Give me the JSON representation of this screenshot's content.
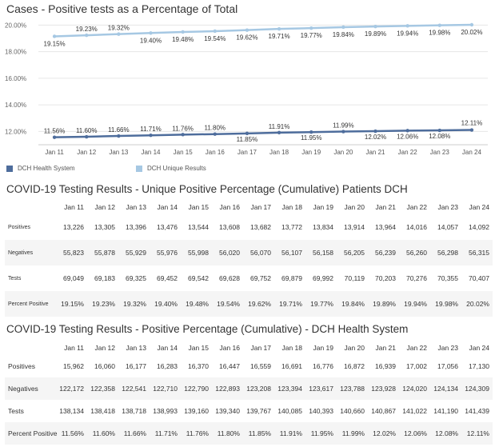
{
  "chart_data": {
    "type": "line",
    "title": "Cases - Positive tests as a Percentage of Total",
    "categories": [
      "Jan 11",
      "Jan 12",
      "Jan 13",
      "Jan 14",
      "Jan 15",
      "Jan 16",
      "Jan 17",
      "Jan 18",
      "Jan 19",
      "Jan 20",
      "Jan 21",
      "Jan 22",
      "Jan 23",
      "Jan 24"
    ],
    "yticks": [
      "20.00%",
      "18.00%",
      "16.00%",
      "14.00%",
      "12.00%"
    ],
    "ytick_values": [
      20,
      18,
      16,
      14,
      12
    ],
    "ylim": [
      11.0,
      20.2
    ],
    "grid": true,
    "legend_position": "bottom-left",
    "series": [
      {
        "name": "DCH Health System",
        "color": "#4e6d9c",
        "values": [
          11.56,
          11.6,
          11.66,
          11.71,
          11.76,
          11.8,
          11.85,
          11.91,
          11.95,
          11.99,
          12.02,
          12.06,
          12.08,
          12.11
        ],
        "labels": [
          "11.56%",
          "11.60%",
          "11.66%",
          "11.71%",
          "11.76%",
          "11.80%",
          "11.85%",
          "11.91%",
          "11.95%",
          "11.99%",
          "12.02%",
          "12.06%",
          "12.08%",
          "12.11%"
        ]
      },
      {
        "name": "DCH Unique Results",
        "color": "#a6c8e3",
        "values": [
          19.15,
          19.23,
          19.32,
          19.4,
          19.48,
          19.54,
          19.62,
          19.71,
          19.77,
          19.84,
          19.89,
          19.94,
          19.98,
          20.02
        ],
        "labels": [
          "19.15%",
          "19.23%",
          "19.32%",
          "19.40%",
          "19.48%",
          "19.54%",
          "19.62%",
          "19.71%",
          "19.77%",
          "19.84%",
          "19.89%",
          "19.94%",
          "19.98%",
          "20.02%"
        ]
      }
    ]
  },
  "table1": {
    "title": "COVID-19 Testing Results - Unique Positive Percentage (Cumulative) Patients DCH",
    "columns": [
      "Jan 11",
      "Jan 12",
      "Jan 13",
      "Jan 14",
      "Jan 15",
      "Jan 16",
      "Jan 17",
      "Jan 18",
      "Jan 19",
      "Jan 20",
      "Jan 21",
      "Jan 22",
      "Jan 23",
      "Jan 24"
    ],
    "rows": [
      {
        "label": "Positives",
        "values": [
          "13,226",
          "13,305",
          "13,396",
          "13,476",
          "13,544",
          "13,608",
          "13,682",
          "13,772",
          "13,834",
          "13,914",
          "13,964",
          "14,016",
          "14,057",
          "14,092"
        ]
      },
      {
        "label": "Negatives",
        "values": [
          "55,823",
          "55,878",
          "55,929",
          "55,976",
          "55,998",
          "56,020",
          "56,070",
          "56,107",
          "56,158",
          "56,205",
          "56,239",
          "56,260",
          "56,298",
          "56,315"
        ]
      },
      {
        "label": "Tests",
        "values": [
          "69,049",
          "69,183",
          "69,325",
          "69,452",
          "69,542",
          "69,628",
          "69,752",
          "69,879",
          "69,992",
          "70,119",
          "70,203",
          "70,276",
          "70,355",
          "70,407"
        ]
      },
      {
        "label": "Percent Positive",
        "values": [
          "19.15%",
          "19.23%",
          "19.32%",
          "19.40%",
          "19.48%",
          "19.54%",
          "19.62%",
          "19.71%",
          "19.77%",
          "19.84%",
          "19.89%",
          "19.94%",
          "19.98%",
          "20.02%"
        ]
      }
    ]
  },
  "table2": {
    "title": "COVID-19 Testing Results - Positive Percentage (Cumulative) - DCH Health System",
    "columns": [
      "Jan 11",
      "Jan 12",
      "Jan 13",
      "Jan 14",
      "Jan 15",
      "Jan 16",
      "Jan 17",
      "Jan 18",
      "Jan 19",
      "Jan 20",
      "Jan 21",
      "Jan 22",
      "Jan 23",
      "Jan 24"
    ],
    "rows": [
      {
        "label": "Positives",
        "values": [
          "15,962",
          "16,060",
          "16,177",
          "16,283",
          "16,370",
          "16,447",
          "16,559",
          "16,691",
          "16,776",
          "16,872",
          "16,939",
          "17,002",
          "17,056",
          "17,130"
        ]
      },
      {
        "label": "Negatives",
        "values": [
          "122,172",
          "122,358",
          "122,541",
          "122,710",
          "122,790",
          "122,893",
          "123,208",
          "123,394",
          "123,617",
          "123,788",
          "123,928",
          "124,020",
          "124,134",
          "124,309"
        ]
      },
      {
        "label": "Tests",
        "values": [
          "138,134",
          "138,418",
          "138,718",
          "138,993",
          "139,160",
          "139,340",
          "139,767",
          "140,085",
          "140,393",
          "140,660",
          "140,867",
          "141,022",
          "141,190",
          "141,439"
        ]
      },
      {
        "label": "Percent Positive",
        "values": [
          "11.56%",
          "11.60%",
          "11.66%",
          "11.71%",
          "11.76%",
          "11.80%",
          "11.85%",
          "11.91%",
          "11.95%",
          "11.99%",
          "12.02%",
          "12.06%",
          "12.08%",
          "12.11%"
        ]
      }
    ]
  }
}
